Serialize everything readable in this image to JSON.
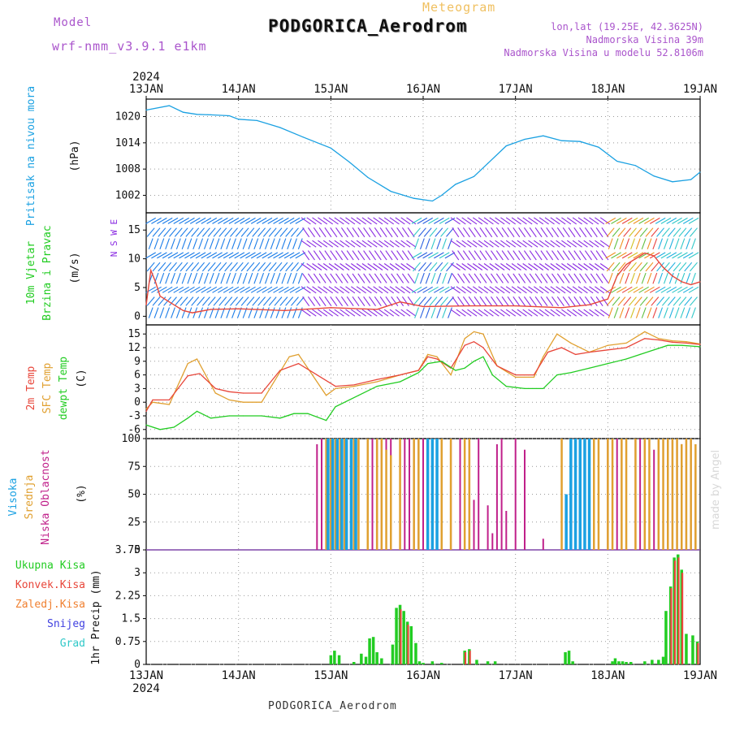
{
  "header": {
    "model_label": "Model",
    "model_name": "wrf-nmm_v3.9.1 e1km",
    "meteogram_label": "Meteogram",
    "station": "PODGORICA_Aerodrom",
    "lonlat": "lon,lat (19.25E, 42.3625N)",
    "altitude": "Nadmorska Visina 39m",
    "model_altitude": "Nadmorska Visina u modelu 52.8106m"
  },
  "footer": {
    "station": "PODGORICA_Aerodrom",
    "credit": "made by Angel"
  },
  "time_axis": {
    "year": "2024",
    "days": [
      "13JAN",
      "14JAN",
      "15JAN",
      "16JAN",
      "17JAN",
      "18JAN",
      "19JAN"
    ]
  },
  "colors": {
    "pressure": "#1ba1e2",
    "t2m": "#e8463a",
    "sfc": "#e0a030",
    "dew": "#22cc22",
    "high_cloud": "#1ba1e2",
    "mid_cloud": "#e0a030",
    "low_cloud": "#c0208a",
    "precip_total": "#22cc22",
    "precip_conv": "#e8463a",
    "precip_strat": "#f08030",
    "snow": "#4040e0",
    "graupel": "#30c8c8",
    "wind_calm": "#8a2be2",
    "wind_speed_trace": "#e8463a",
    "model_text": "#aa55cc",
    "meteogram_text": "#f0c060"
  },
  "chart_data": [
    {
      "type": "line",
      "panel": "pressure",
      "title": "Pritisak na nivou mora",
      "ylabel": "(hPa)",
      "ylim": [
        998,
        1024
      ],
      "yticks": [
        "1002",
        "1008",
        "1014",
        "1020"
      ],
      "grid": true,
      "x_unit": "days since 13JAN 00UTC",
      "series": [
        {
          "name": "Pritisak na nivou mora",
          "x": [
            0,
            0.25,
            0.4,
            0.55,
            0.7,
            0.9,
            1.0,
            1.2,
            1.45,
            1.7,
            2.0,
            2.2,
            2.4,
            2.65,
            2.9,
            3.1,
            3.2,
            3.35,
            3.55,
            3.7,
            3.9,
            4.1,
            4.3,
            4.5,
            4.7,
            4.9,
            5.1,
            5.3,
            5.5,
            5.7,
            5.9,
            6.0
          ],
          "values": [
            1021.5,
            1022.5,
            1021.0,
            1020.5,
            1020.4,
            1020.2,
            1019.4,
            1019.1,
            1017.5,
            1015.3,
            1012.8,
            1009.6,
            1006.1,
            1002.9,
            1001.3,
            1000.7,
            1002.0,
            1004.5,
            1006.3,
            1009.3,
            1013.3,
            1014.8,
            1015.6,
            1014.5,
            1014.3,
            1013.0,
            1009.8,
            1008.8,
            1006.4,
            1005.1,
            1005.6,
            1007.3
          ]
        }
      ]
    },
    {
      "type": "line",
      "panel": "wind",
      "title": "10m Vjetar Brzina i Pravac",
      "ylabel": "(m/s)",
      "ylim": [
        -1.5,
        18
      ],
      "yticks": [
        "0",
        "5",
        "10",
        "15"
      ],
      "grid": false,
      "compass": "N S W E",
      "x_unit": "days since 13JAN 00UTC",
      "series": [
        {
          "name": "10m Vjetar Brzina",
          "x": [
            0,
            0.05,
            0.1,
            0.15,
            0.25,
            0.4,
            0.5,
            0.7,
            1.0,
            1.5,
            2.0,
            2.5,
            2.75,
            3.0,
            3.5,
            4.0,
            4.5,
            4.8,
            5.0,
            5.1,
            5.2,
            5.3,
            5.4,
            5.5,
            5.6,
            5.7,
            5.8,
            5.9,
            6.0
          ],
          "values": [
            2.0,
            8.0,
            6.0,
            3.5,
            2.5,
            1.0,
            0.6,
            1.2,
            1.3,
            1.0,
            1.5,
            1.2,
            2.5,
            1.7,
            1.8,
            1.8,
            1.5,
            2.0,
            3.0,
            7.0,
            9.0,
            10.0,
            11.0,
            10.5,
            8.5,
            7.0,
            6.0,
            5.5,
            6.0
          ]
        }
      ]
    },
    {
      "type": "line",
      "panel": "temperature",
      "title": "2m Temp / SFC Temp / dewpt Temp",
      "ylabel": "(C)",
      "ylim": [
        -8,
        17
      ],
      "yticks": [
        "-6",
        "-3",
        "0",
        "3",
        "6",
        "9",
        "12",
        "15"
      ],
      "grid": true,
      "x_unit": "days since 13JAN 00UTC",
      "series": [
        {
          "name": "2m Temp",
          "x": [
            0,
            0.07,
            0.25,
            0.45,
            0.58,
            0.75,
            0.9,
            1.05,
            1.25,
            1.45,
            1.65,
            1.85,
            2.05,
            2.25,
            2.5,
            2.75,
            2.95,
            3.05,
            3.15,
            3.3,
            3.45,
            3.55,
            3.65,
            3.8,
            4.0,
            4.2,
            4.35,
            4.5,
            4.65,
            4.8,
            5.0,
            5.2,
            5.4,
            5.55,
            5.7,
            5.85,
            6.0
          ],
          "values": [
            -2,
            0.5,
            0.5,
            5.8,
            6.3,
            3.0,
            2.3,
            2.0,
            2.0,
            7.0,
            8.5,
            6.0,
            3.5,
            3.8,
            5.0,
            6.0,
            7.0,
            10.0,
            9.5,
            7.5,
            12.5,
            13.3,
            12.0,
            8.0,
            6.0,
            6.0,
            11.0,
            12.0,
            10.5,
            11.0,
            11.5,
            12.0,
            14.0,
            13.7,
            13.2,
            13.0,
            12.7
          ]
        },
        {
          "name": "SFC Temp",
          "x": [
            0,
            0.07,
            0.25,
            0.45,
            0.55,
            0.75,
            0.9,
            1.05,
            1.25,
            1.4,
            1.55,
            1.65,
            1.8,
            1.95,
            2.05,
            2.25,
            2.5,
            2.75,
            2.95,
            3.05,
            3.15,
            3.3,
            3.45,
            3.55,
            3.65,
            3.8,
            4.0,
            4.2,
            4.3,
            4.45,
            4.6,
            4.8,
            5.0,
            5.2,
            5.4,
            5.55,
            5.7,
            5.85,
            6.0
          ],
          "values": [
            -1.5,
            0.0,
            -0.5,
            8.5,
            9.5,
            2.0,
            0.5,
            0.0,
            0.0,
            5.0,
            10.0,
            10.5,
            6.0,
            1.5,
            3.0,
            3.5,
            4.5,
            6.0,
            7.0,
            10.5,
            10.0,
            6.0,
            14.0,
            15.5,
            15.0,
            8.0,
            5.5,
            5.5,
            10.0,
            15.0,
            13.0,
            11.0,
            12.5,
            13.0,
            15.5,
            14.0,
            13.5,
            13.3,
            12.8
          ]
        },
        {
          "name": "dewpt Temp",
          "x": [
            0,
            0.15,
            0.3,
            0.45,
            0.55,
            0.7,
            0.9,
            1.05,
            1.25,
            1.45,
            1.6,
            1.75,
            1.95,
            2.05,
            2.3,
            2.5,
            2.75,
            2.95,
            3.05,
            3.2,
            3.35,
            3.45,
            3.55,
            3.65,
            3.75,
            3.9,
            4.1,
            4.3,
            4.45,
            4.6,
            4.8,
            5.0,
            5.2,
            5.35,
            5.5,
            5.65,
            5.8,
            6.0
          ],
          "values": [
            -5.0,
            -6.0,
            -5.5,
            -3.5,
            -2.0,
            -3.5,
            -3.0,
            -3.0,
            -3.0,
            -3.5,
            -2.5,
            -2.5,
            -4.0,
            -1.0,
            1.5,
            3.5,
            4.5,
            6.5,
            8.5,
            9.0,
            7.0,
            7.5,
            9.0,
            10.0,
            6.0,
            3.5,
            3.0,
            3.0,
            6.0,
            6.5,
            7.5,
            8.5,
            9.5,
            10.5,
            11.5,
            12.5,
            12.5,
            12.2
          ]
        }
      ]
    },
    {
      "type": "bar",
      "panel": "cloud",
      "title": "Visoka / Srednja / Niska Oblacnost",
      "ylabel": "(%)",
      "ylim": [
        0,
        100
      ],
      "yticks": [
        "0",
        "25",
        "50",
        "75",
        "100"
      ],
      "grid": true,
      "x_unit": "days since 13JAN 00UTC",
      "series": [
        {
          "name": "Niska Oblacnost",
          "x": [
            1.85,
            1.9,
            1.95,
            2.0,
            2.05,
            2.1,
            2.15,
            2.25,
            2.3,
            2.4,
            2.45,
            2.5,
            2.55,
            2.6,
            2.65,
            2.75,
            2.8,
            2.85,
            2.9,
            2.95,
            3.0,
            3.1,
            3.15,
            3.2,
            3.3,
            3.4,
            3.5,
            3.55,
            3.6,
            3.7,
            3.75,
            3.8,
            3.85,
            3.9,
            4.0,
            4.1,
            4.3,
            4.5,
            4.6,
            4.8,
            4.85,
            4.9,
            5.0,
            5.1,
            5.15,
            5.3,
            5.35,
            5.4,
            5.5,
            5.55,
            5.6,
            5.7,
            5.75,
            5.8,
            5.85,
            5.9,
            5.95
          ],
          "values": [
            95,
            100,
            100,
            100,
            100,
            100,
            100,
            100,
            100,
            100,
            100,
            100,
            100,
            100,
            100,
            90,
            100,
            100,
            100,
            100,
            100,
            55,
            100,
            95,
            100,
            100,
            100,
            45,
            100,
            40,
            15,
            95,
            100,
            35,
            100,
            90,
            10,
            90,
            100,
            100,
            100,
            100,
            100,
            100,
            100,
            100,
            100,
            100,
            90,
            100,
            90,
            100,
            100,
            95,
            100,
            100,
            75
          ]
        },
        {
          "name": "Srednja Oblacnost",
          "x": [
            1.95,
            2.0,
            2.05,
            2.1,
            2.15,
            2.25,
            2.3,
            2.4,
            2.5,
            2.55,
            2.6,
            2.65,
            2.75,
            2.9,
            2.95,
            3.1,
            3.2,
            3.3,
            3.45,
            3.5,
            4.5,
            4.6,
            4.65,
            4.7,
            4.75,
            4.85,
            4.9,
            5.0,
            5.05,
            5.15,
            5.2,
            5.3,
            5.4,
            5.45,
            5.55,
            5.6,
            5.65,
            5.7,
            5.75,
            5.8,
            5.85,
            5.9,
            5.95
          ],
          "values": [
            100,
            100,
            100,
            100,
            100,
            100,
            100,
            100,
            100,
            100,
            90,
            85,
            100,
            100,
            100,
            100,
            100,
            100,
            100,
            100,
            100,
            100,
            100,
            100,
            100,
            100,
            100,
            100,
            100,
            100,
            100,
            100,
            100,
            100,
            100,
            100,
            100,
            100,
            100,
            95,
            100,
            100,
            95
          ]
        },
        {
          "name": "Visoka Oblacnost",
          "x": [
            1.97,
            2.02,
            2.07,
            2.12,
            2.17,
            2.22,
            2.27,
            3.05,
            3.1,
            3.15,
            4.55,
            4.6,
            4.65,
            4.7,
            4.75,
            4.8
          ],
          "values": [
            100,
            100,
            100,
            100,
            100,
            100,
            100,
            100,
            100,
            100,
            50,
            100,
            100,
            100,
            100,
            100
          ]
        }
      ]
    },
    {
      "type": "bar",
      "panel": "precipitation",
      "title": "1hr Precip",
      "ylabel": "(mm)",
      "ylim": [
        0,
        3.75
      ],
      "yticks": [
        "0",
        "0.75",
        "1.5",
        "2.25",
        "3",
        "3.75"
      ],
      "grid": true,
      "legend": [
        "Ukupna Kisa",
        "Konvek.Kisa",
        "Zaledj.Kisa",
        "Snijeg",
        "Grad"
      ],
      "x_unit": "days since 13JAN 00UTC",
      "series": [
        {
          "name": "Ukupna Kisa",
          "x": [
            2.0,
            2.04,
            2.09,
            2.25,
            2.33,
            2.38,
            2.42,
            2.46,
            2.5,
            2.55,
            2.67,
            2.71,
            2.75,
            2.79,
            2.83,
            2.87,
            2.92,
            2.96,
            3.0,
            3.1,
            3.2,
            3.45,
            3.5,
            3.58,
            3.7,
            3.78,
            4.54,
            4.58,
            4.62,
            5.05,
            5.08,
            5.12,
            5.16,
            5.2,
            5.25,
            5.4,
            5.48,
            5.55,
            5.6,
            5.63,
            5.68,
            5.72,
            5.76,
            5.8,
            5.85,
            5.92,
            5.97
          ],
          "values": [
            0.3,
            0.45,
            0.3,
            0.08,
            0.35,
            0.25,
            0.85,
            0.9,
            0.4,
            0.2,
            0.65,
            1.85,
            1.95,
            1.75,
            1.4,
            1.25,
            0.7,
            0.1,
            0.05,
            0.1,
            0.05,
            0.45,
            0.5,
            0.15,
            0.1,
            0.1,
            0.4,
            0.45,
            0.1,
            0.1,
            0.2,
            0.1,
            0.1,
            0.08,
            0.08,
            0.1,
            0.15,
            0.15,
            0.25,
            1.75,
            2.55,
            3.5,
            3.6,
            3.1,
            1.0,
            0.95,
            0.75
          ]
        },
        {
          "name": "Konvek.Kisa",
          "x": [
            2.75,
            2.83,
            3.45,
            3.5,
            5.68,
            5.72,
            5.76,
            5.8,
            5.97
          ],
          "values": [
            1.8,
            1.3,
            0.4,
            0.45,
            2.5,
            3.4,
            3.5,
            3.0,
            0.7
          ]
        }
      ]
    }
  ]
}
